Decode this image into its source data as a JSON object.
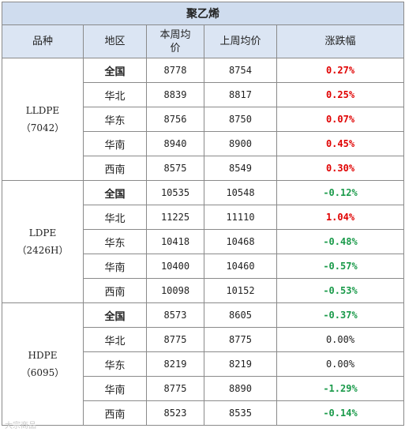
{
  "title": "聚乙烯",
  "headers": [
    "品种",
    "地区",
    "本周均价",
    "上周均价",
    "涨跌幅"
  ],
  "groups": [
    {
      "name": "LLDPE",
      "grade": "（7042）",
      "rows": [
        {
          "region": "全国",
          "this_week": "8778",
          "last_week": "8754",
          "change": "0.27%"
        },
        {
          "region": "华北",
          "this_week": "8839",
          "last_week": "8817",
          "change": "0.25%"
        },
        {
          "region": "华东",
          "this_week": "8756",
          "last_week": "8750",
          "change": "0.07%"
        },
        {
          "region": "华南",
          "this_week": "8940",
          "last_week": "8900",
          "change": "0.45%"
        },
        {
          "region": "西南",
          "this_week": "8575",
          "last_week": "8549",
          "change": "0.30%"
        }
      ]
    },
    {
      "name": "LDPE",
      "grade": "（2426H）",
      "rows": [
        {
          "region": "全国",
          "this_week": "10535",
          "last_week": "10548",
          "change": "-0.12%"
        },
        {
          "region": "华北",
          "this_week": "11225",
          "last_week": "11110",
          "change": "1.04%"
        },
        {
          "region": "华东",
          "this_week": "10418",
          "last_week": "10468",
          "change": "-0.48%"
        },
        {
          "region": "华南",
          "this_week": "10400",
          "last_week": "10460",
          "change": "-0.57%"
        },
        {
          "region": "西南",
          "this_week": "10098",
          "last_week": "10152",
          "change": "-0.53%"
        }
      ]
    },
    {
      "name": "HDPE",
      "grade": "（6095）",
      "rows": [
        {
          "region": "全国",
          "this_week": "8573",
          "last_week": "8605",
          "change": "-0.37%"
        },
        {
          "region": "华北",
          "this_week": "8775",
          "last_week": "8775",
          "change": "0.00%"
        },
        {
          "region": "华东",
          "this_week": "8219",
          "last_week": "8219",
          "change": "0.00%"
        },
        {
          "region": "华南",
          "this_week": "8775",
          "last_week": "8890",
          "change": "-1.29%"
        },
        {
          "region": "西南",
          "this_week": "8523",
          "last_week": "8535",
          "change": "-0.14%"
        }
      ]
    }
  ],
  "watermark": "大宗商品"
}
